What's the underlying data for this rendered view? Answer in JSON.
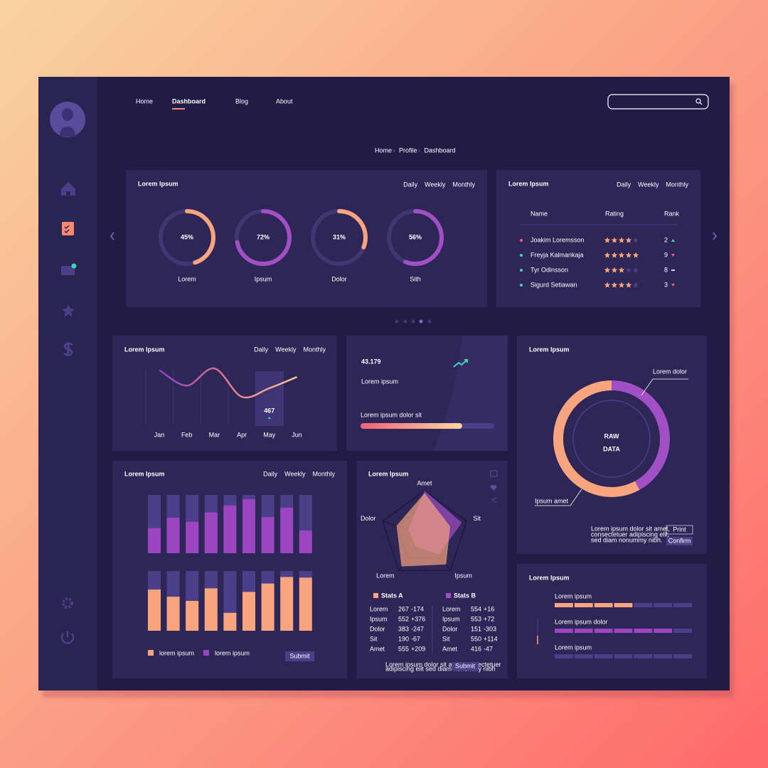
{
  "nav": {
    "items": [
      "Home",
      "Dashboard",
      "Blog",
      "About"
    ],
    "active": 1
  },
  "breadcrumb": [
    "Home",
    "Profile",
    "Dashboard"
  ],
  "rings_card": {
    "title": "Lorem Ipsum",
    "tabs": [
      "Daily",
      "Weekly",
      "Monthly"
    ],
    "active_tab": 2,
    "rings": [
      {
        "label": "Lorem",
        "value": 45,
        "value_label": "45%",
        "color": "#f7a47f"
      },
      {
        "label": "Ipsum",
        "value": 72,
        "value_label": "72%",
        "color": "#a14fc4"
      },
      {
        "label": "Dolor",
        "value": 31,
        "value_label": "31%",
        "color": "#f7a47f"
      },
      {
        "label": "Sith",
        "value": 56,
        "value_label": "56%",
        "color": "#a14fc4"
      }
    ]
  },
  "rank_card": {
    "title": "Lorem Ipsum",
    "tabs": [
      "Daily",
      "Weekly",
      "Monthly"
    ],
    "active_tab": 2,
    "columns": [
      "Name",
      "Rating",
      "Rank"
    ],
    "rows": [
      {
        "name": "Joakim Loremsson",
        "rating": 4,
        "rank": 2,
        "trend": "up",
        "dot_color": "#f0607a"
      },
      {
        "name": "Freyja Kalmankaja",
        "rating": 5,
        "rank": 9,
        "trend": "down",
        "dot_color": "#3fd6b5"
      },
      {
        "name": "Tyr Odinsson",
        "rating": 3,
        "rank": 8,
        "trend": "flat",
        "dot_color": "#3fd6b5"
      },
      {
        "name": "Sigurd Setiawan",
        "rating": 4,
        "rank": 3,
        "trend": "down",
        "dot_color": "#3fd6b5"
      }
    ]
  },
  "line_card": {
    "title": "Lorem Ipsum",
    "tabs": [
      "Daily",
      "Weekly",
      "Monthly"
    ],
    "active_tab": 2,
    "categories": [
      "Jan",
      "Feb",
      "Mar",
      "Apr",
      "May",
      "Jun"
    ],
    "values": [
      551,
      479,
      559,
      427,
      467,
      519
    ],
    "highlight_index": 4
  },
  "stat_card": {
    "value": 43.179,
    "label": "Lorem ipsum",
    "progress_label": "Lorem ipsum dolor sit",
    "progress": 76
  },
  "donut_card": {
    "title": "Lorem Ipsum",
    "center": [
      "RAW",
      "DATA"
    ],
    "segments": [
      {
        "label": "Lorem dolor",
        "value": 42,
        "color": "#a14fc4"
      },
      {
        "label": "Ipsum amet",
        "value": 58,
        "color": "#f7a47f"
      }
    ],
    "description": [
      "Lorem ipsum dolor sit amet,",
      "consectetuer adipiscing elit,",
      "sed diam nonummy nibh."
    ],
    "buttons": [
      "Print",
      "Confirm"
    ]
  },
  "bars_card": {
    "title": "Lorem Ipsum",
    "tabs": [
      "Daily",
      "Weekly",
      "Monthly"
    ],
    "active_tab": 2,
    "series": [
      {
        "name": "lorem ipsum",
        "color": "#f7a47f",
        "values": [
          69,
          57,
          50,
          71,
          30,
          65,
          79,
          90,
          89
        ]
      },
      {
        "name": "lorem ipsum",
        "color": "#9b46c0",
        "values": [
          43,
          61,
          54,
          70,
          82,
          93,
          62,
          78,
          39
        ]
      }
    ],
    "button": "Submit"
  },
  "radar_card": {
    "title": "Lorem Ipsum",
    "axes": [
      "Amet",
      "Sit",
      "Ipsum",
      "Lorem",
      "Dolor"
    ],
    "series": [
      {
        "name": "Stats A",
        "color": "#f7a47f",
        "values": [
          85,
          55,
          75,
          80,
          60
        ],
        "rows": [
          [
            "Lorem",
            267,
            "-174"
          ],
          [
            "Ipsum",
            552,
            "+376"
          ],
          [
            "Dolor",
            383,
            "-247"
          ],
          [
            "Sit",
            190,
            "-67"
          ],
          [
            "Amet",
            555,
            "+209"
          ]
        ]
      },
      {
        "name": "Stats B",
        "color": "#a14fc4",
        "values": [
          90,
          80,
          50,
          30,
          35
        ],
        "rows": [
          [
            "Lorem",
            554,
            "+16"
          ],
          [
            "Ipsum",
            553,
            "+72"
          ],
          [
            "Dolor",
            151,
            "-303"
          ],
          [
            "Sit",
            550,
            "+114"
          ],
          [
            "Amet",
            416,
            "-47"
          ]
        ]
      }
    ],
    "note": [
      "Lorem ipsum dolor sit amet consectetuer",
      "adipiscing elit sed diam nonummy nibh"
    ],
    "button": "Submit"
  },
  "progress_card": {
    "title": "Lorem Ipsum",
    "rows": [
      {
        "label": "Lorem ipsum",
        "filled": 4,
        "total": 7,
        "color": "#f7a47f",
        "dim": false
      },
      {
        "label": "Lorem ipsum dolor",
        "filled": 6,
        "total": 7,
        "color": "#9b46c0",
        "dim": false
      },
      {
        "label": "Lorem ipsum",
        "filled": 0,
        "total": 7,
        "color": "#9b46c0",
        "dim": true
      }
    ]
  }
}
